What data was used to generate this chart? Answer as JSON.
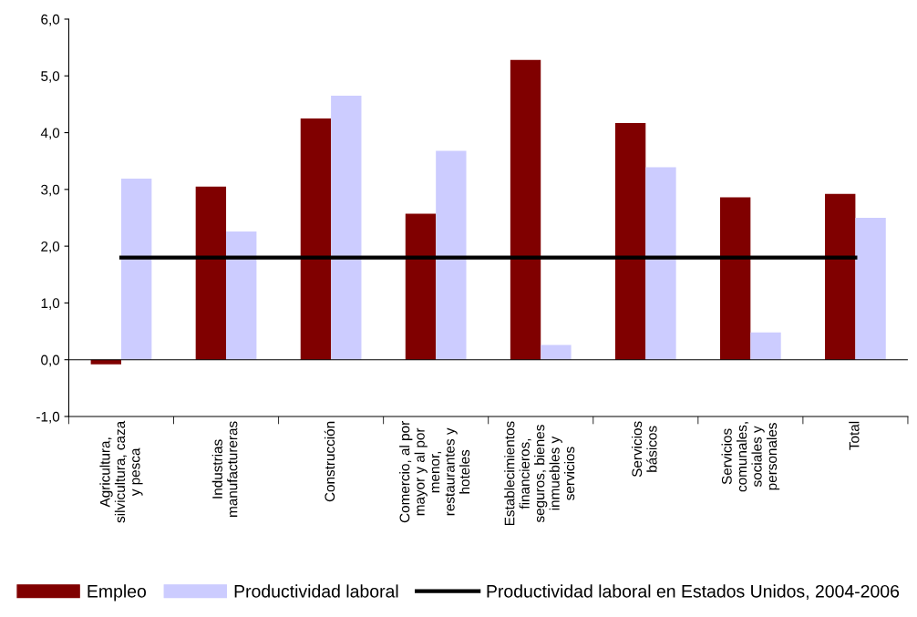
{
  "chart_data": {
    "type": "bar",
    "categories": [
      "Agricultura,\nsilvicultura, caza\ny pesca",
      "Industrias\nmanufactureras",
      "Construcción",
      "Comercio, al por\nmayor y al por\nmenor,\nrestaurantes y\nhoteles",
      "Establecimientos\nfinancieros,\nseguros, bienes\ninmuebles y\nservicios",
      "Servicios\nbásicos",
      "Servicios\ncomunales,\nsociales y\npersonales",
      "Total"
    ],
    "series": [
      {
        "name": "Empleo",
        "color": "#800000",
        "values": [
          -0.08,
          3.05,
          4.25,
          2.57,
          5.28,
          4.17,
          2.86,
          2.92
        ]
      },
      {
        "name": "Productividad laboral",
        "color": "#ccccff",
        "values": [
          3.19,
          2.26,
          4.65,
          3.68,
          0.26,
          3.39,
          0.48,
          2.5
        ]
      },
      {
        "name": "Productividad laboral en Estados Unidos, 2004-2006",
        "type": "line",
        "color": "#000000",
        "values": [
          1.8,
          1.8,
          1.8,
          1.8,
          1.8,
          1.8,
          1.8,
          1.8
        ]
      }
    ],
    "ylim": [
      -1,
      6
    ],
    "yticks": [
      {
        "value": -1,
        "label": "-1,0"
      },
      {
        "value": 0,
        "label": "0,0"
      },
      {
        "value": 1,
        "label": "1,0"
      },
      {
        "value": 2,
        "label": "2,0"
      },
      {
        "value": 3,
        "label": "3,0"
      },
      {
        "value": 4,
        "label": "4,0"
      },
      {
        "value": 5,
        "label": "5,0"
      },
      {
        "value": 6,
        "label": "6,0"
      }
    ],
    "grid": false,
    "legend": "bottom"
  }
}
